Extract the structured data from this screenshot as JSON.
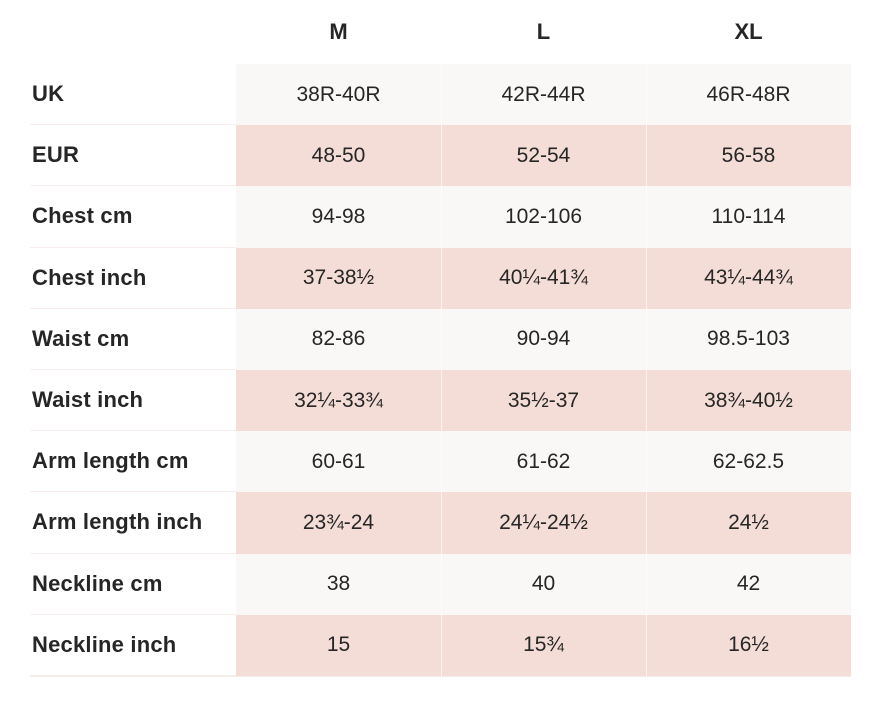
{
  "table": {
    "size_headers": [
      "M",
      "L",
      "XL"
    ],
    "rows": [
      {
        "label": "UK",
        "values": [
          "38R-40R",
          "42R-44R",
          "46R-48R"
        ]
      },
      {
        "label": "EUR",
        "values": [
          "48-50",
          "52-54",
          "56-58"
        ]
      },
      {
        "label": "Chest cm",
        "values": [
          "94-98",
          "102-106",
          "110-114"
        ]
      },
      {
        "label": "Chest inch",
        "values": [
          "37-38½",
          "40¼-41¾",
          "43¼-44¾"
        ]
      },
      {
        "label": "Waist cm",
        "values": [
          "82-86",
          "90-94",
          "98.5-103"
        ]
      },
      {
        "label": "Waist inch",
        "values": [
          "32¼-33¾",
          "35½-37",
          "38¾-40½"
        ]
      },
      {
        "label": "Arm length cm",
        "values": [
          "60-61",
          "61-62",
          "62-62.5"
        ]
      },
      {
        "label": "Arm length inch",
        "values": [
          "23¾-24",
          "24¼-24½",
          "24½"
        ]
      },
      {
        "label": "Neckline cm",
        "values": [
          "38",
          "40",
          "42"
        ]
      },
      {
        "label": "Neckline inch",
        "values": [
          "15",
          "15¾",
          "16½"
        ]
      }
    ]
  },
  "colors": {
    "row_pink": "#f4ddd6",
    "row_offwhite": "#f9f8f6",
    "text": "#262626",
    "page_background": "#ffffff"
  }
}
